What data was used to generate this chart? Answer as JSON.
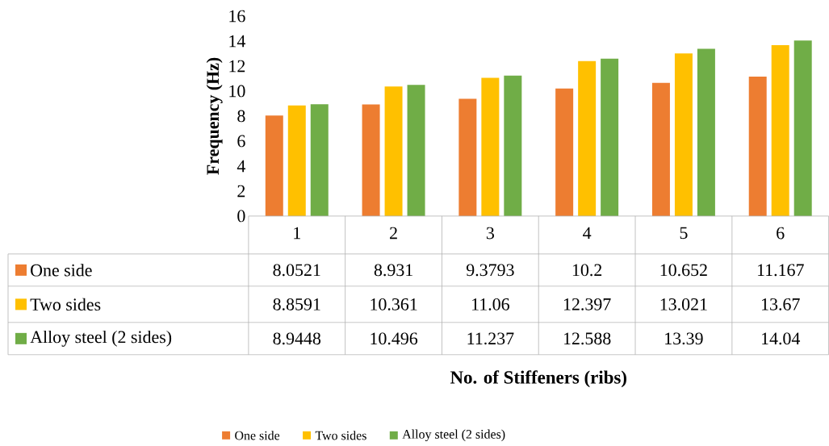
{
  "chart_data": {
    "type": "bar",
    "annotations": [
      "No. of Stiffeners (ribs)"
    ],
    "ylabel": "Frequency (Hz)",
    "categories": [
      "1",
      "2",
      "3",
      "4",
      "5",
      "6"
    ],
    "series": [
      {
        "name": "One side",
        "color": "#ed7d31",
        "values": [
          8.0521,
          8.931,
          9.3793,
          10.2,
          10.652,
          11.167
        ]
      },
      {
        "name": "Two sides",
        "color": "#ffc000",
        "values": [
          8.8591,
          10.361,
          11.06,
          12.397,
          13.021,
          13.67
        ]
      },
      {
        "name": "Alloy steel (2 sides)",
        "color": "#70ad47",
        "values": [
          8.9448,
          10.496,
          11.237,
          12.588,
          13.39,
          14.04
        ]
      }
    ],
    "ylim": [
      0,
      16
    ],
    "yticks": [
      0,
      2,
      4,
      6,
      8,
      10,
      12,
      14,
      16
    ],
    "data_labels": true,
    "legend": "bottom",
    "grid": false
  }
}
